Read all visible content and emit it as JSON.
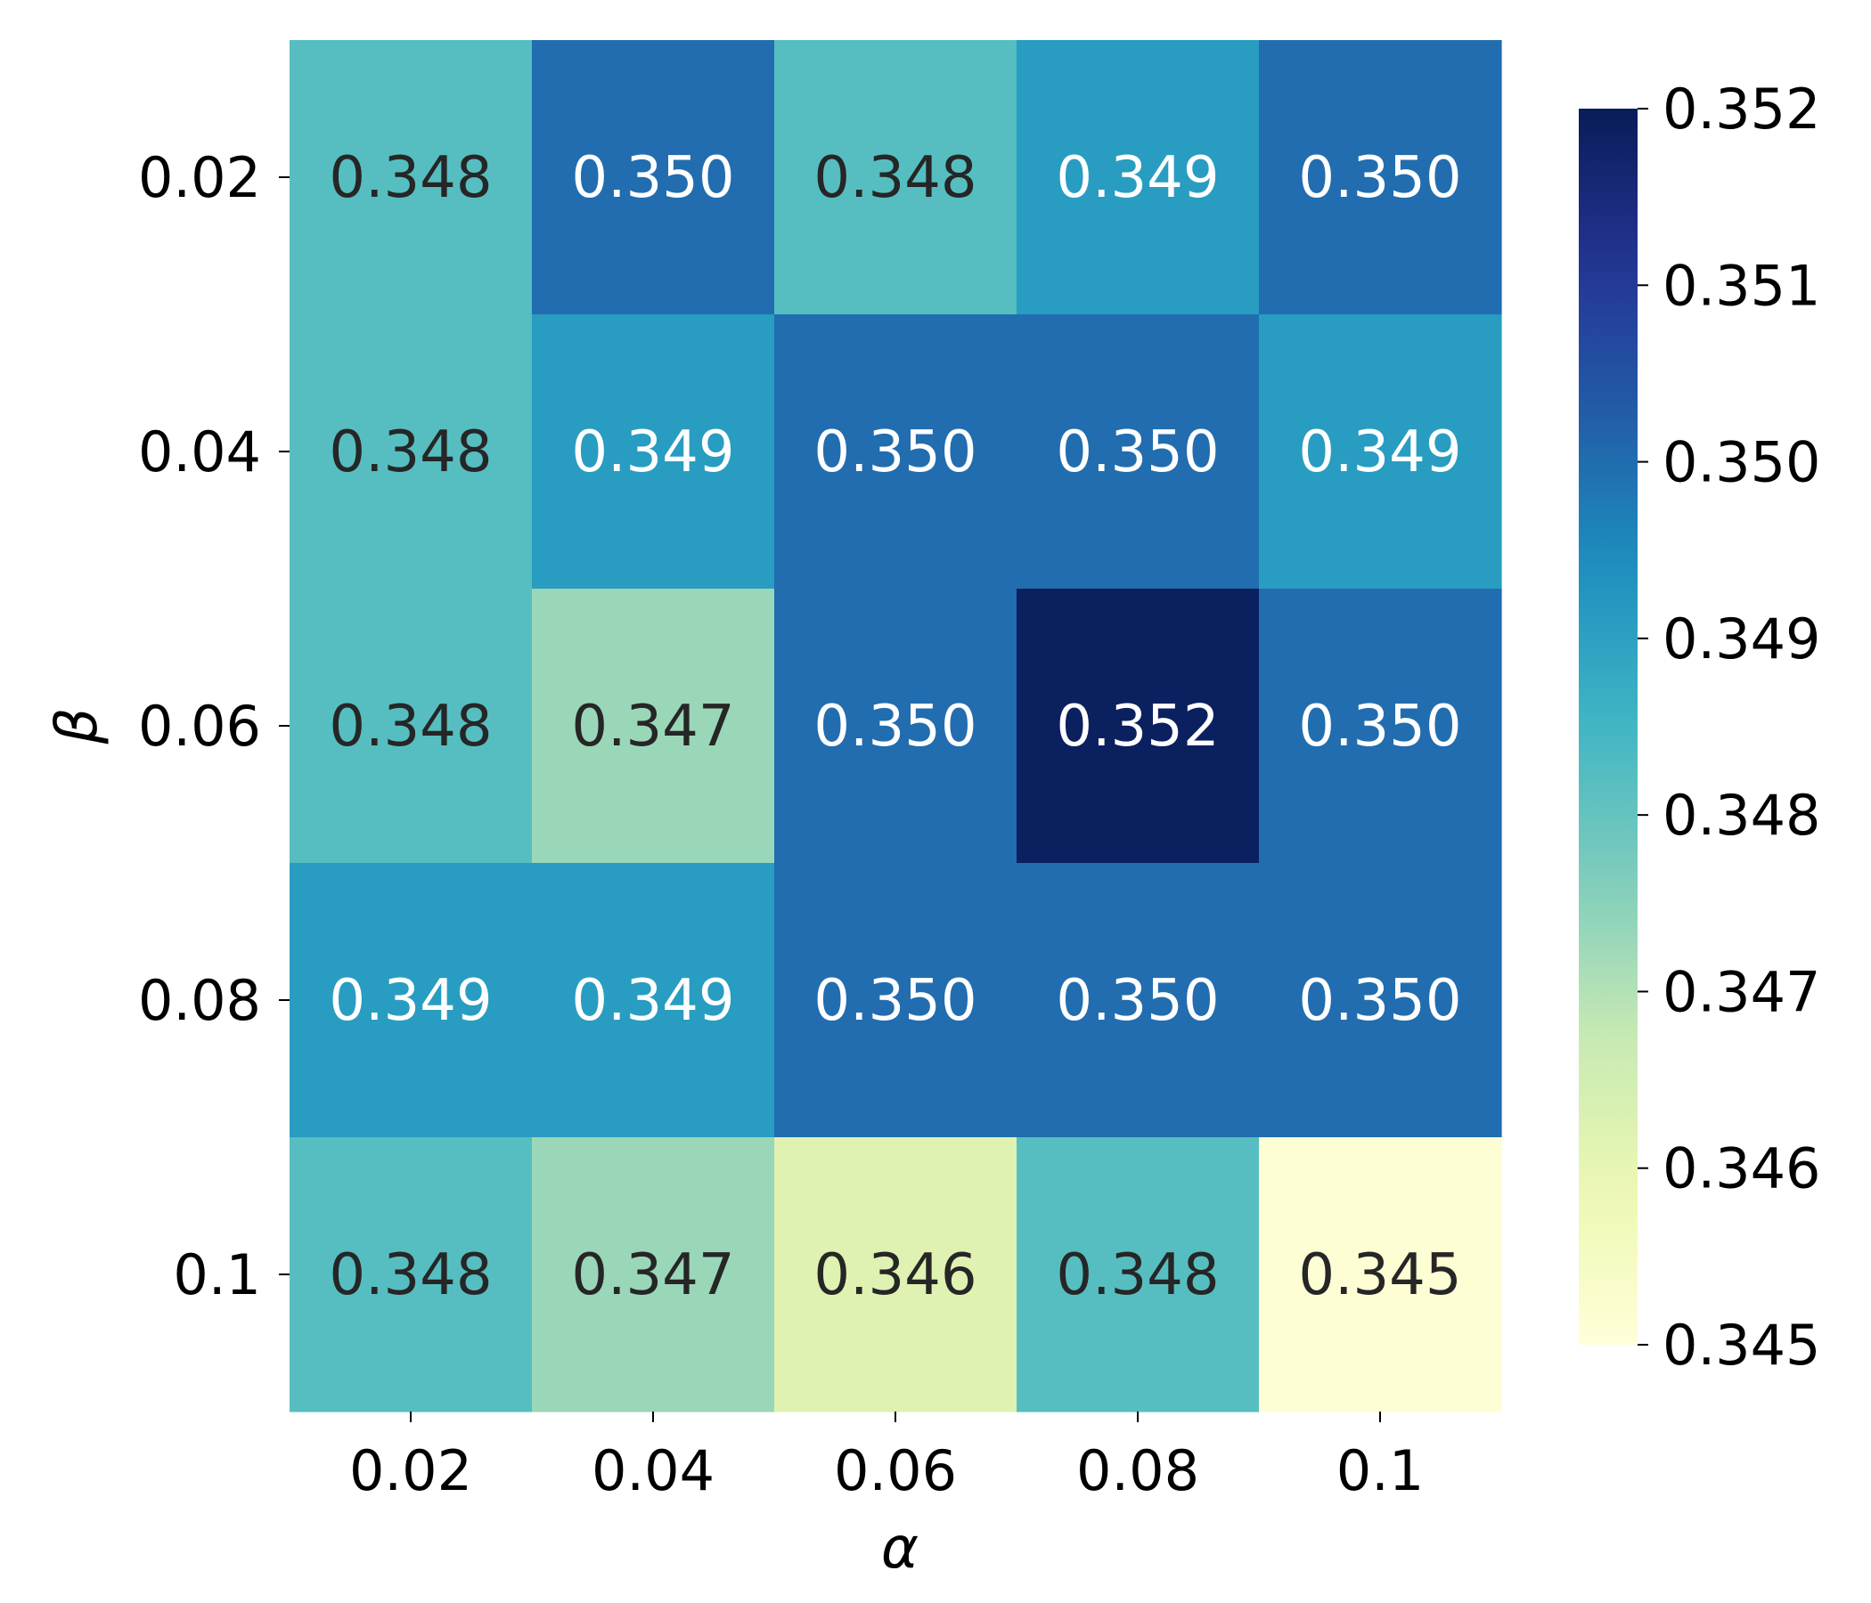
{
  "chart_data": {
    "type": "heatmap",
    "title": "",
    "xlabel": "α",
    "ylabel": "β",
    "x_categories": [
      "0.02",
      "0.04",
      "0.06",
      "0.08",
      "0.1"
    ],
    "y_categories": [
      "0.02",
      "0.04",
      "0.06",
      "0.08",
      "0.1"
    ],
    "values": [
      [
        0.3482,
        0.35,
        0.3482,
        0.3491,
        0.35
      ],
      [
        0.3482,
        0.3491,
        0.35,
        0.35,
        0.3491
      ],
      [
        0.3482,
        0.3473,
        0.35,
        0.3519,
        0.35
      ],
      [
        0.3491,
        0.3491,
        0.35,
        0.35,
        0.35
      ],
      [
        0.3482,
        0.3473,
        0.3462,
        0.3482,
        0.3451
      ]
    ],
    "labels": [
      [
        "0.348",
        "0.350",
        "0.348",
        "0.349",
        "0.350"
      ],
      [
        "0.348",
        "0.349",
        "0.350",
        "0.350",
        "0.349"
      ],
      [
        "0.348",
        "0.347",
        "0.350",
        "0.352",
        "0.350"
      ],
      [
        "0.349",
        "0.349",
        "0.350",
        "0.350",
        "0.350"
      ],
      [
        "0.348",
        "0.347",
        "0.346",
        "0.348",
        "0.345"
      ]
    ],
    "colorbar": {
      "min": 0.345,
      "max": 0.352,
      "ticks": [
        0.345,
        0.346,
        0.347,
        0.348,
        0.349,
        0.35,
        0.351,
        0.352
      ],
      "tick_labels": [
        "0.345",
        "0.346",
        "0.347",
        "0.348",
        "0.349",
        "0.350",
        "0.351",
        "0.352"
      ],
      "colormap": "YlGnBu"
    },
    "text_colors": {
      "dark": "#262626",
      "light": "#ffffff"
    }
  }
}
